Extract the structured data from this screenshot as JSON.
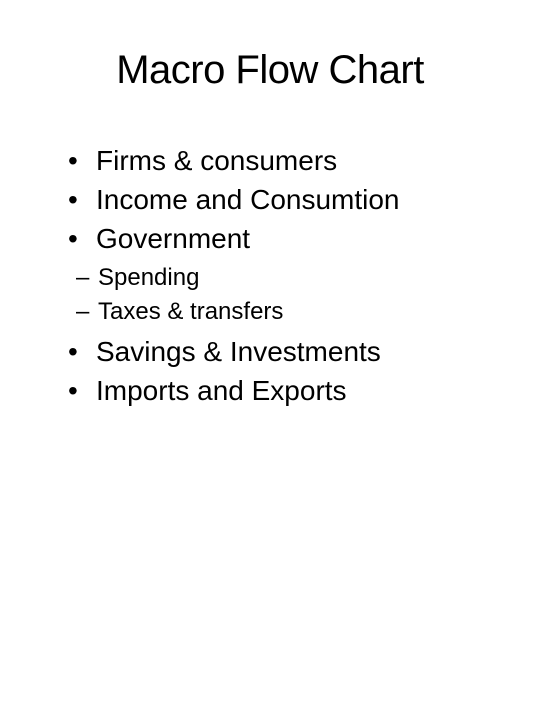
{
  "title": "Macro Flow Chart",
  "bullets": {
    "item0": "Firms & consumers",
    "item1": "Income and Consumtion",
    "item2": "Government",
    "item3": "Savings & Investments",
    "item4": "Imports and Exports"
  },
  "subbullets": {
    "item0": "Spending",
    "item1": "Taxes & transfers"
  },
  "styling": {
    "background_color": "#ffffff",
    "text_color": "#000000",
    "title_fontsize": 40,
    "bullet_fontsize": 28,
    "subbullet_fontsize": 24,
    "font_family": "Arial"
  }
}
